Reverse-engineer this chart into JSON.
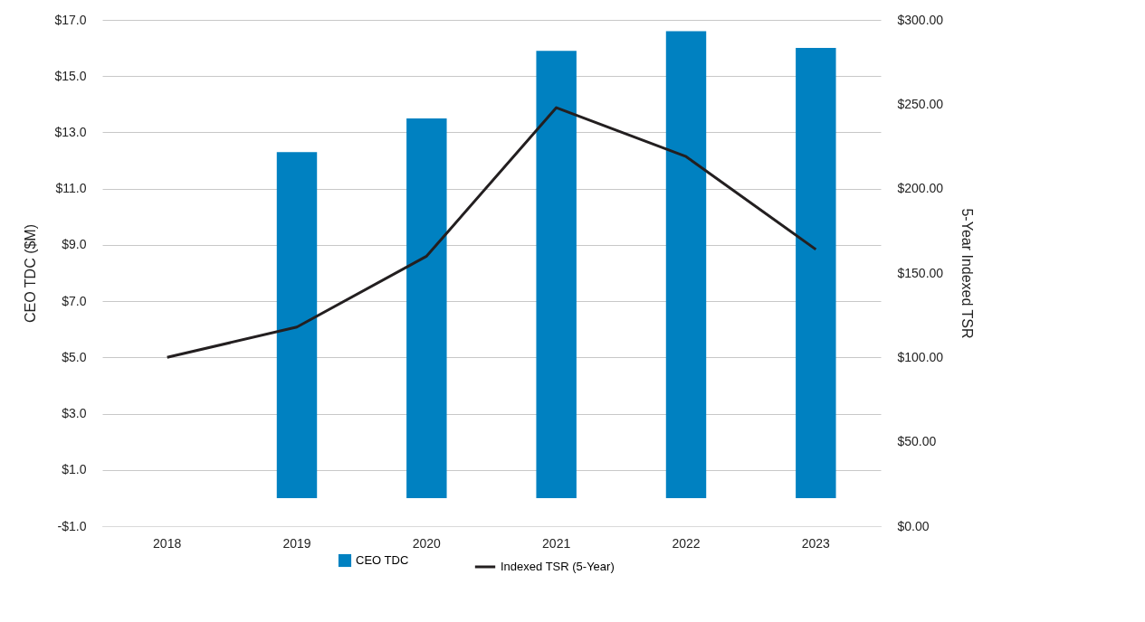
{
  "chart_data": {
    "type": "bar",
    "categories": [
      "2018",
      "2019",
      "2020",
      "2021",
      "2022",
      "2023"
    ],
    "series": [
      {
        "name": "CEO TDC",
        "color": "#0081c1",
        "values": [
          null,
          12.3,
          13.5,
          15.9,
          16.6,
          16.0
        ]
      },
      {
        "name": "Indexed TSR (5-Year)",
        "type": "line",
        "axis": "y2",
        "color": "#231f20",
        "values": [
          100,
          118,
          160,
          248,
          219,
          164
        ]
      }
    ],
    "ylabel": "CEO TDC ($M)",
    "y2label": "5-Year Indexed TSR",
    "ylim": [
      -1,
      17
    ],
    "yticks": [
      {
        "value": -1,
        "label": "-$1.0"
      },
      {
        "value": 1,
        "label": "$1.0"
      },
      {
        "value": 3,
        "label": "$3.0"
      },
      {
        "value": 5,
        "label": "$5.0"
      },
      {
        "value": 7,
        "label": "$7.0"
      },
      {
        "value": 9,
        "label": "$9.0"
      },
      {
        "value": 11,
        "label": "$11.0"
      },
      {
        "value": 13,
        "label": "$13.0"
      },
      {
        "value": 15,
        "label": "$15.0"
      },
      {
        "value": 17,
        "label": "$17.0"
      }
    ],
    "y2lim": [
      0,
      300
    ],
    "y2ticks": [
      {
        "value": 0,
        "label": "$0.00"
      },
      {
        "value": 50,
        "label": "$50.00"
      },
      {
        "value": 100,
        "label": "$100.00"
      },
      {
        "value": 150,
        "label": "$150.00"
      },
      {
        "value": 200,
        "label": "$200.00"
      },
      {
        "value": 250,
        "label": "$250.00"
      },
      {
        "value": 300,
        "label": "$300.00"
      }
    ],
    "grid": "y",
    "legend": "bottom",
    "line_style": "solid"
  }
}
